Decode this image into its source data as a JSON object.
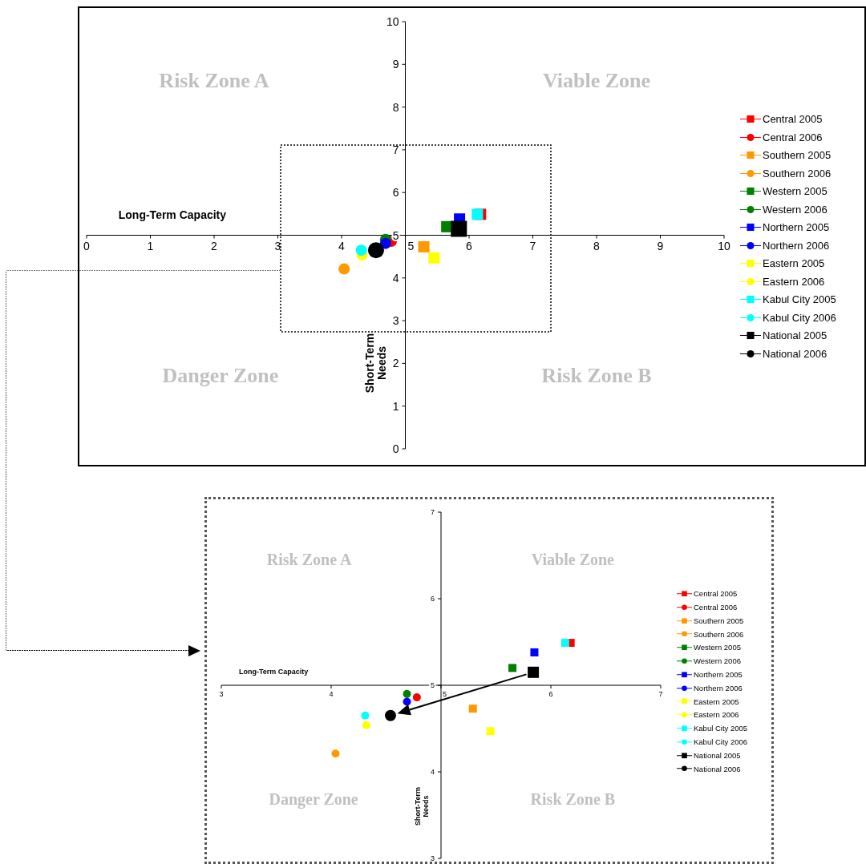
{
  "chart_data": [
    {
      "type": "scatter",
      "xlabel": "Long-Term Capacity",
      "ylabel": "Short-Term Needs",
      "xlim": [
        0,
        10
      ],
      "ylim": [
        0,
        10
      ],
      "xticks": [
        0,
        1,
        2,
        3,
        4,
        5,
        6,
        7,
        8,
        9,
        10
      ],
      "yticks": [
        0,
        1,
        2,
        3,
        4,
        5,
        6,
        7,
        8,
        9,
        10
      ],
      "grid": false,
      "legend": "right",
      "annotations": [
        "Risk Zone A",
        "Viable Zone",
        "Danger Zone",
        "Risk Zone B"
      ],
      "series": [
        {
          "name": "Central 2005",
          "color": "#ff0000",
          "marker": "square",
          "x": [
            6.18
          ],
          "values": [
            5.49
          ]
        },
        {
          "name": "Central 2006",
          "color": "#ff0000",
          "marker": "circle",
          "x": [
            4.78
          ],
          "values": [
            4.86
          ]
        },
        {
          "name": "Southern 2005",
          "color": "#ff9900",
          "marker": "square",
          "x": [
            5.29
          ],
          "values": [
            4.73
          ]
        },
        {
          "name": "Southern 2006",
          "color": "#ff9900",
          "marker": "circle",
          "x": [
            4.04
          ],
          "values": [
            4.21
          ]
        },
        {
          "name": "Western 2005",
          "color": "#008000",
          "marker": "square",
          "x": [
            5.65
          ],
          "values": [
            5.2
          ]
        },
        {
          "name": "Western 2006",
          "color": "#008000",
          "marker": "circle",
          "x": [
            4.69
          ],
          "values": [
            4.9
          ]
        },
        {
          "name": "Northern 2005",
          "color": "#0000ff",
          "marker": "square",
          "x": [
            5.85
          ],
          "values": [
            5.38
          ]
        },
        {
          "name": "Northern 2006",
          "color": "#0000ff",
          "marker": "circle",
          "x": [
            4.69
          ],
          "values": [
            4.81
          ]
        },
        {
          "name": "Eastern 2005",
          "color": "#ffff00",
          "marker": "square",
          "x": [
            5.45
          ],
          "values": [
            4.47
          ]
        },
        {
          "name": "Eastern 2006",
          "color": "#ffff00",
          "marker": "circle",
          "x": [
            4.32
          ],
          "values": [
            4.54
          ]
        },
        {
          "name": "Kabul City 2005",
          "color": "#00ffff",
          "marker": "square",
          "x": [
            6.13
          ],
          "values": [
            5.49
          ]
        },
        {
          "name": "Kabul City 2006",
          "color": "#00ffff",
          "marker": "circle",
          "x": [
            4.31
          ],
          "values": [
            4.65
          ]
        },
        {
          "name": "National 2005",
          "color": "#000000",
          "marker": "square",
          "x": [
            5.84
          ],
          "values": [
            5.15
          ]
        },
        {
          "name": "National 2006",
          "color": "#000000",
          "marker": "circle",
          "x": [
            4.54
          ],
          "values": [
            4.65
          ]
        }
      ]
    },
    {
      "type": "scatter",
      "xlabel": "Long-Term Capacity",
      "ylabel": "Short-Term Needs",
      "xlim": [
        3,
        7
      ],
      "ylim": [
        3,
        7
      ],
      "xticks": [
        3,
        4,
        5,
        6,
        7
      ],
      "yticks": [
        3,
        4,
        5,
        6,
        7
      ],
      "grid": false,
      "legend": "right",
      "annotations": [
        "Risk Zone A",
        "Viable Zone",
        "Danger Zone",
        "Risk Zone B"
      ],
      "series": [
        {
          "name": "Central 2005",
          "color": "#ff0000",
          "marker": "square",
          "x": [
            6.18
          ],
          "values": [
            5.49
          ]
        },
        {
          "name": "Central 2006",
          "color": "#ff0000",
          "marker": "circle",
          "x": [
            4.78
          ],
          "values": [
            4.86
          ]
        },
        {
          "name": "Southern 2005",
          "color": "#ff9900",
          "marker": "square",
          "x": [
            5.29
          ],
          "values": [
            4.73
          ]
        },
        {
          "name": "Southern 2006",
          "color": "#ff9900",
          "marker": "circle",
          "x": [
            4.04
          ],
          "values": [
            4.21
          ]
        },
        {
          "name": "Western 2005",
          "color": "#008000",
          "marker": "square",
          "x": [
            5.65
          ],
          "values": [
            5.2
          ]
        },
        {
          "name": "Western 2006",
          "color": "#008000",
          "marker": "circle",
          "x": [
            4.69
          ],
          "values": [
            4.9
          ]
        },
        {
          "name": "Northern 2005",
          "color": "#0000ff",
          "marker": "square",
          "x": [
            5.85
          ],
          "values": [
            5.38
          ]
        },
        {
          "name": "Northern 2006",
          "color": "#0000ff",
          "marker": "circle",
          "x": [
            4.69
          ],
          "values": [
            4.81
          ]
        },
        {
          "name": "Eastern 2005",
          "color": "#ffff00",
          "marker": "square",
          "x": [
            5.45
          ],
          "values": [
            4.47
          ]
        },
        {
          "name": "Eastern 2006",
          "color": "#ffff00",
          "marker": "circle",
          "x": [
            4.32
          ],
          "values": [
            4.54
          ]
        },
        {
          "name": "Kabul City 2005",
          "color": "#00ffff",
          "marker": "square",
          "x": [
            6.13
          ],
          "values": [
            5.49
          ]
        },
        {
          "name": "Kabul City 2006",
          "color": "#00ffff",
          "marker": "circle",
          "x": [
            4.31
          ],
          "values": [
            4.65
          ]
        },
        {
          "name": "National 2005",
          "color": "#000000",
          "marker": "square",
          "x": [
            5.84
          ],
          "values": [
            5.15
          ]
        },
        {
          "name": "National 2006",
          "color": "#000000",
          "marker": "circle",
          "x": [
            4.54
          ],
          "values": [
            4.65
          ]
        }
      ]
    }
  ]
}
